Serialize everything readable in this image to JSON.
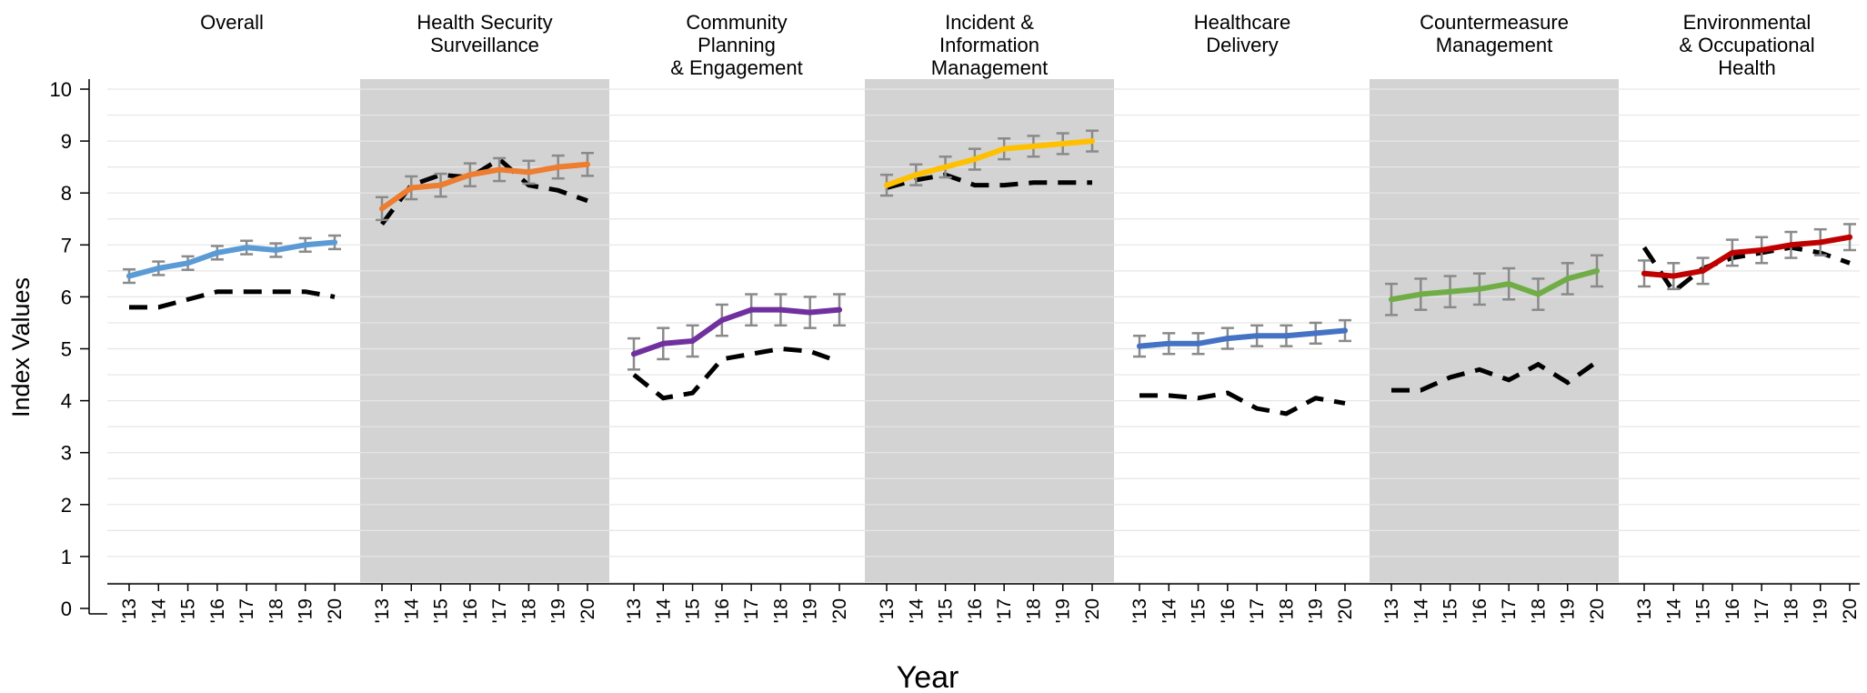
{
  "chart_data": {
    "type": "line",
    "xlabel": "Year",
    "ylabel": "Index Values",
    "ylim": [
      0,
      10
    ],
    "yticks": [
      "0",
      "1",
      "2",
      "3",
      "4",
      "5",
      "6",
      "7",
      "8",
      "9",
      "10"
    ],
    "x_tick_labels": [
      "'13",
      "'14",
      "'15",
      "'16",
      "'17",
      "'18",
      "'19",
      "'20"
    ],
    "grid": "horizontal",
    "shaded_panels": [
      1,
      3,
      5
    ],
    "shade_color": "#d3d3d3",
    "reference_line_color": "#000000",
    "errorbar_color": "#8a8a8a",
    "panels": [
      {
        "title": [
          "Overall"
        ],
        "color": "#5b9bd5",
        "values": [
          6.4,
          6.55,
          6.65,
          6.85,
          6.95,
          6.9,
          7.0,
          7.05
        ],
        "error": [
          0.13,
          0.13,
          0.13,
          0.13,
          0.13,
          0.13,
          0.13,
          0.13
        ],
        "reference": [
          5.8,
          5.8,
          5.95,
          6.1,
          6.1,
          6.1,
          6.1,
          6.0
        ]
      },
      {
        "title": [
          "Health Security",
          "Surveillance"
        ],
        "color": "#ed7d31",
        "values": [
          7.7,
          8.1,
          8.15,
          8.35,
          8.45,
          8.4,
          8.5,
          8.55
        ],
        "error": [
          0.22,
          0.22,
          0.22,
          0.22,
          0.22,
          0.22,
          0.22,
          0.22
        ],
        "reference": [
          7.4,
          8.15,
          8.35,
          8.3,
          8.65,
          8.15,
          8.05,
          7.85
        ]
      },
      {
        "title": [
          "Community",
          "Planning",
          "& Engagement"
        ],
        "color": "#7030a0",
        "values": [
          4.9,
          5.1,
          5.15,
          5.55,
          5.75,
          5.75,
          5.7,
          5.75
        ],
        "error": [
          0.3,
          0.3,
          0.3,
          0.3,
          0.3,
          0.3,
          0.3,
          0.3
        ],
        "reference": [
          4.5,
          4.05,
          4.15,
          4.8,
          4.9,
          5.0,
          4.95,
          4.75
        ]
      },
      {
        "title": [
          "Incident &",
          "Information",
          "Management"
        ],
        "color": "#ffc000",
        "values": [
          8.15,
          8.35,
          8.5,
          8.65,
          8.85,
          8.9,
          8.95,
          9.0
        ],
        "error": [
          0.2,
          0.2,
          0.2,
          0.2,
          0.2,
          0.2,
          0.2,
          0.2
        ],
        "reference": [
          8.1,
          8.25,
          8.35,
          8.15,
          8.15,
          8.2,
          8.2,
          8.2
        ]
      },
      {
        "title": [
          "Healthcare",
          "Delivery"
        ],
        "color": "#4472c4",
        "values": [
          5.05,
          5.1,
          5.1,
          5.2,
          5.25,
          5.25,
          5.3,
          5.35
        ],
        "error": [
          0.2,
          0.2,
          0.2,
          0.2,
          0.2,
          0.2,
          0.2,
          0.2
        ],
        "reference": [
          4.1,
          4.1,
          4.05,
          4.15,
          3.85,
          3.75,
          4.05,
          3.95
        ]
      },
      {
        "title": [
          "Countermeasure",
          "Management"
        ],
        "color": "#70ad47",
        "values": [
          5.95,
          6.05,
          6.1,
          6.15,
          6.25,
          6.05,
          6.35,
          6.5
        ],
        "error": [
          0.3,
          0.3,
          0.3,
          0.3,
          0.3,
          0.3,
          0.3,
          0.3
        ],
        "reference": [
          4.2,
          4.2,
          4.45,
          4.6,
          4.4,
          4.7,
          4.35,
          4.75
        ]
      },
      {
        "title": [
          "Environmental",
          "& Occupational",
          "Health"
        ],
        "color": "#c00000",
        "values": [
          6.45,
          6.4,
          6.5,
          6.85,
          6.9,
          7.0,
          7.05,
          7.15
        ],
        "error": [
          0.25,
          0.25,
          0.25,
          0.25,
          0.25,
          0.25,
          0.25,
          0.25
        ],
        "reference": [
          6.95,
          6.1,
          6.55,
          6.75,
          6.85,
          6.95,
          6.85,
          6.65
        ]
      }
    ]
  }
}
